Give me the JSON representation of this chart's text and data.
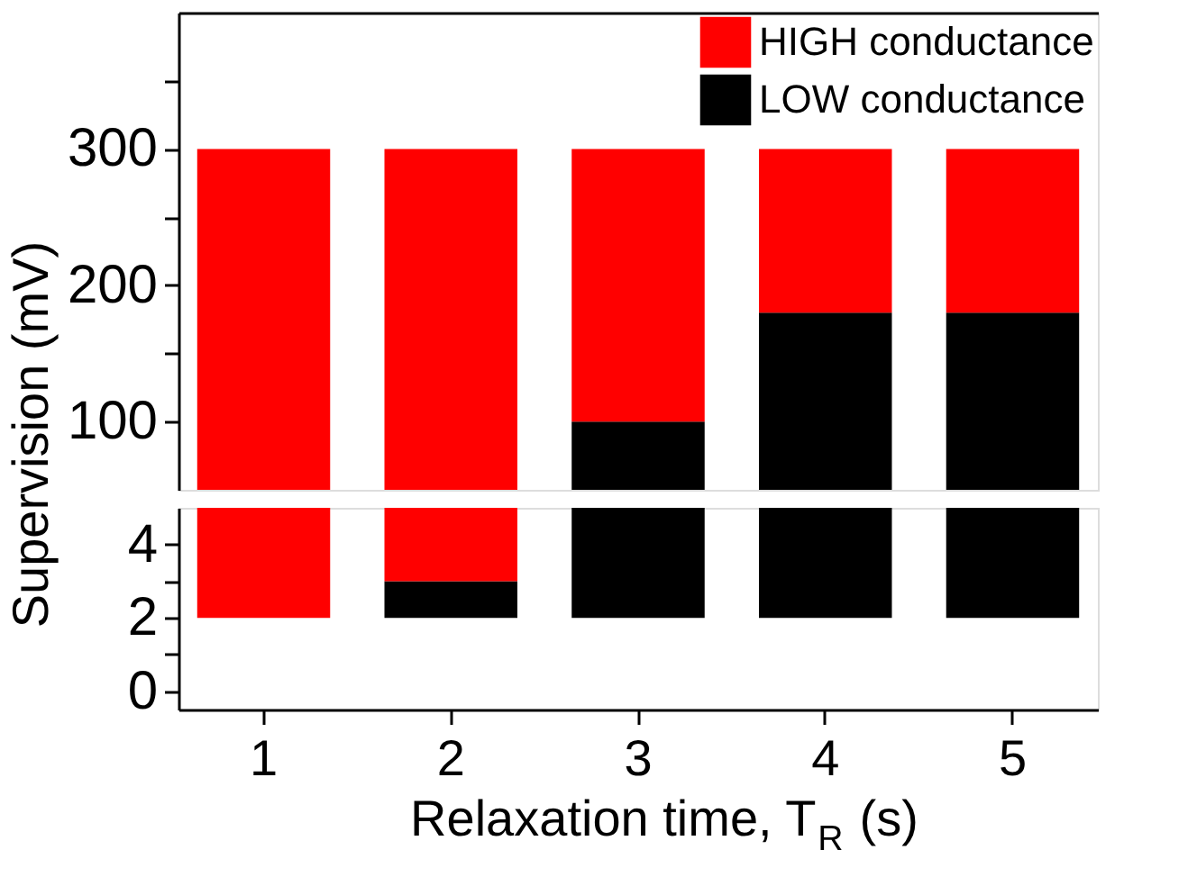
{
  "chart_data": [
    {
      "type": "bar",
      "legend": "top right",
      "tick_labels": "y",
      "ylabel": "Supervision  (mV)",
      "categories": [
        "1",
        "2",
        "3",
        "4",
        "5"
      ],
      "series": [
        {
          "name": "LOW conductance",
          "color": "#000000",
          "base": [
            null,
            null,
            50,
            50,
            50
          ],
          "values": [
            null,
            null,
            50,
            130,
            130
          ]
        },
        {
          "name": "HIGH conductance",
          "color": "#ff0000",
          "base": [
            50,
            50,
            100,
            180,
            180
          ],
          "values": [
            250,
            250,
            200,
            120,
            120
          ]
        }
      ],
      "ylim": [
        50,
        400
      ],
      "yticks": [
        100,
        {
          "value": 150,
          "label": null
        },
        200,
        {
          "value": 250,
          "label": null
        },
        300,
        {
          "value": 350,
          "label": null
        }
      ]
    },
    {
      "type": "bar",
      "xlabel": "Relaxation time, T$_{R}$ (s)",
      "categories": [
        "1",
        "2",
        "3",
        "4",
        "5"
      ],
      "series": [
        {
          "color": "#000000",
          "base": [
            null,
            2,
            2,
            2,
            2
          ],
          "values": [
            null,
            1,
            3,
            3,
            3
          ]
        },
        {
          "color": "#ff0000",
          "base": [
            2,
            3,
            null,
            null,
            null
          ],
          "values": [
            3,
            2,
            null,
            null,
            null
          ]
        }
      ],
      "ylim": [
        -0.5,
        5
      ],
      "yticks": [
        0,
        {
          "value": 1,
          "label": null
        },
        2,
        {
          "value": 3,
          "label": null
        },
        4
      ]
    }
  ]
}
